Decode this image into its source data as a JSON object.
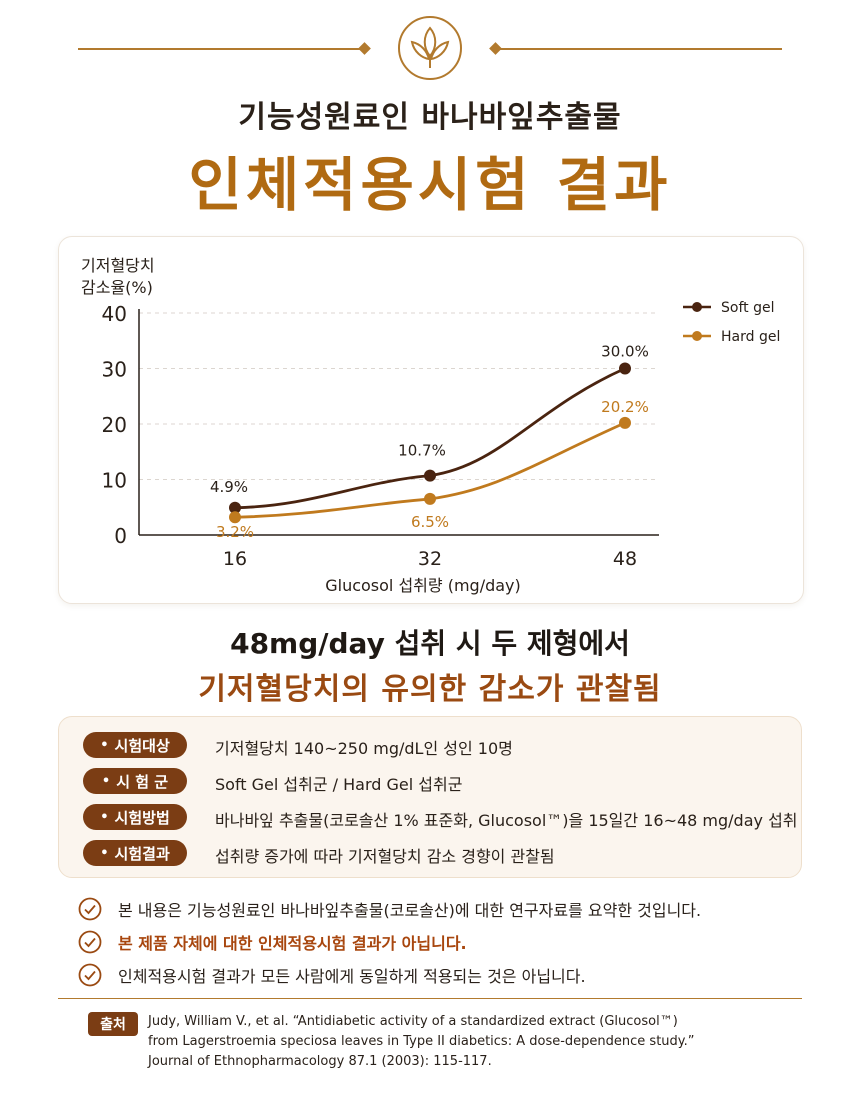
{
  "header": {
    "subtitle": "기능성원료인 바나바잎추출물",
    "title": "인체적용시험 결과"
  },
  "chart_data": {
    "type": "line",
    "ylabel_line1": "기저혈당치",
    "ylabel_line2": "감소율(%)",
    "xlabel": "Glucosol 섭취량 (mg/day)",
    "categories": [
      "16",
      "32",
      "48"
    ],
    "x": [
      16,
      32,
      48
    ],
    "ylim": [
      0,
      40
    ],
    "yticks": [
      0,
      10,
      20,
      30,
      40
    ],
    "grid": true,
    "legend_position": "top-right",
    "series": [
      {
        "name": "Soft gel",
        "color": "#4a2410",
        "values": [
          4.9,
          10.7,
          30.0
        ],
        "labels": [
          "4.9%",
          "10.7%",
          "30.0%"
        ]
      },
      {
        "name": "Hard gel",
        "color": "#c07a1e",
        "values": [
          3.2,
          6.5,
          20.2
        ],
        "labels": [
          "3.2%",
          "6.5%",
          "20.2%"
        ]
      }
    ]
  },
  "conclusion": {
    "line1": "48mg/day 섭취 시 두 제형에서",
    "line2": "기저혈당치의 유의한 감소가 관찰됨"
  },
  "info": [
    {
      "label": "시험대상",
      "text": "기저혈당치 140~250 mg/dL인 성인 10명"
    },
    {
      "label": "시 험 군",
      "text": "Soft Gel 섭취군 / Hard Gel 섭취군"
    },
    {
      "label": "시험방법",
      "text": "바나바잎 추출물(코로솔산 1% 표준화, Glucosol™)을 15일간 16~48 mg/day 섭취"
    },
    {
      "label": "시험결과",
      "text": "섭취량 증가에 따라 기저혈당치 감소 경향이 관찰됨"
    }
  ],
  "notices": [
    {
      "text": "본 내용은 기능성원료인 바나바잎추출물(코로솔산)에 대한 연구자료를 요약한 것입니다."
    },
    {
      "text": "본 제품 자체에 대한 인체적용시험 결과가 아닙니다."
    },
    {
      "text": "인체적용시험 결과가 모든 사람에게 동일하게 적용되는 것은 아닙니다."
    }
  ],
  "source": {
    "badge": "출처",
    "line1": "Judy, William V., et al. “Antidiabetic activity of a standardized extract (Glucosol™)",
    "line2": "from Lagerstroemia speciosa leaves in Type II diabetics: A dose-dependence study.”",
    "line3": "Journal of Ethnopharmacology 87.1 (2003): 115-117."
  },
  "colors": {
    "accent": "#b06a12",
    "brown": "#7b3d14",
    "soft_gel": "#4a2410",
    "hard_gel": "#c07a1e"
  }
}
